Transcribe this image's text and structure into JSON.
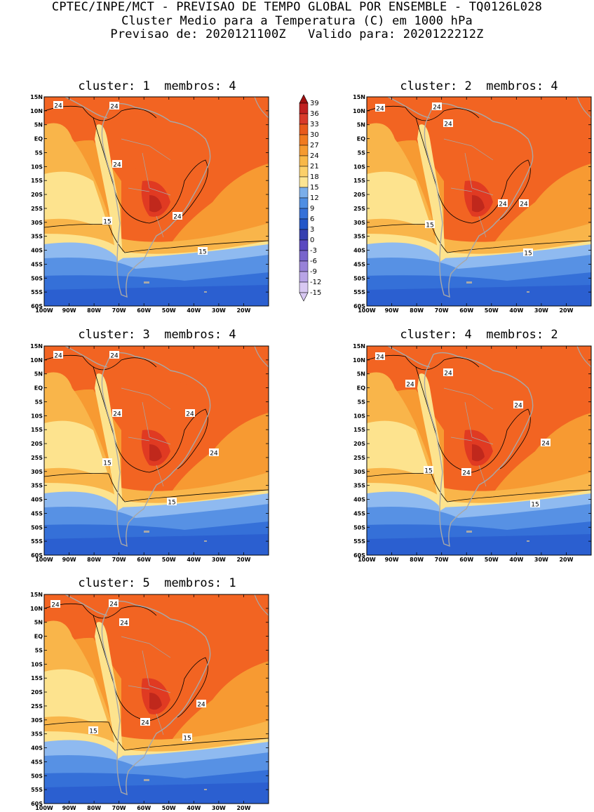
{
  "header": {
    "line1": "CPTEC/INPE/MCT - PREVISAO DE TEMPO GLOBAL POR ENSEMBLE - TQ0126L028",
    "line2": "Cluster Medio para a Temperatura (C) em 1000 hPa",
    "line3": "Previsao de: 2020121100Z   Valido para: 2020122212Z"
  },
  "panels": [
    {
      "title": "cluster: 1  membros: 4",
      "labels": [
        "24",
        "24",
        "24",
        "24",
        "15",
        "15"
      ]
    },
    {
      "title": "cluster: 2  membros: 4",
      "labels": [
        "24",
        "24",
        "24",
        "24",
        "24",
        "15",
        "15"
      ]
    },
    {
      "title": "cluster: 3  membros: 4",
      "labels": [
        "24",
        "24",
        "24",
        "24",
        "24",
        "15",
        "15"
      ]
    },
    {
      "title": "cluster: 4  membros: 2",
      "labels": [
        "24",
        "24",
        "24",
        "24",
        "24",
        "24",
        "15",
        "15"
      ]
    },
    {
      "title": "cluster: 5  membros: 1",
      "labels": [
        "24",
        "24",
        "24",
        "24",
        "24",
        "15",
        "15"
      ]
    }
  ],
  "axes": {
    "lat_ticks": [
      "15N",
      "10N",
      "5N",
      "EQ",
      "5S",
      "10S",
      "15S",
      "20S",
      "25S",
      "30S",
      "35S",
      "40S",
      "45S",
      "50S",
      "55S",
      "60S"
    ],
    "lon_ticks": [
      "100W",
      "90W",
      "80W",
      "70W",
      "60W",
      "50W",
      "40W",
      "30W",
      "20W"
    ]
  },
  "colorbar": {
    "labels": [
      "39",
      "36",
      "33",
      "30",
      "27",
      "24",
      "21",
      "18",
      "15",
      "12",
      "9",
      "6",
      "3",
      "0",
      "-3",
      "-6",
      "-9",
      "-12",
      "-15"
    ],
    "colors": [
      "#a01010",
      "#c02020",
      "#d83a2a",
      "#e85a1c",
      "#f07a20",
      "#f59a30",
      "#f8b848",
      "#fbd06a",
      "#fce593",
      "#7aaeea",
      "#4f8ee3",
      "#3570d8",
      "#2356c8",
      "#3640b0",
      "#5a48c0",
      "#7864cc",
      "#9882d8",
      "#b8a4e6",
      "#d8c8f2"
    ]
  },
  "colors": {
    "warm_max": "#c0281c",
    "warm_high": "#e03a22",
    "warm": "#f26422",
    "orange": "#f79a32",
    "light_orange": "#f9b54a",
    "yellow": "#fde38e",
    "light_blue": "#8fbaf0",
    "mid_blue": "#5791e4",
    "blue": "#3570d8",
    "deep_blue": "#2b5fd0"
  }
}
